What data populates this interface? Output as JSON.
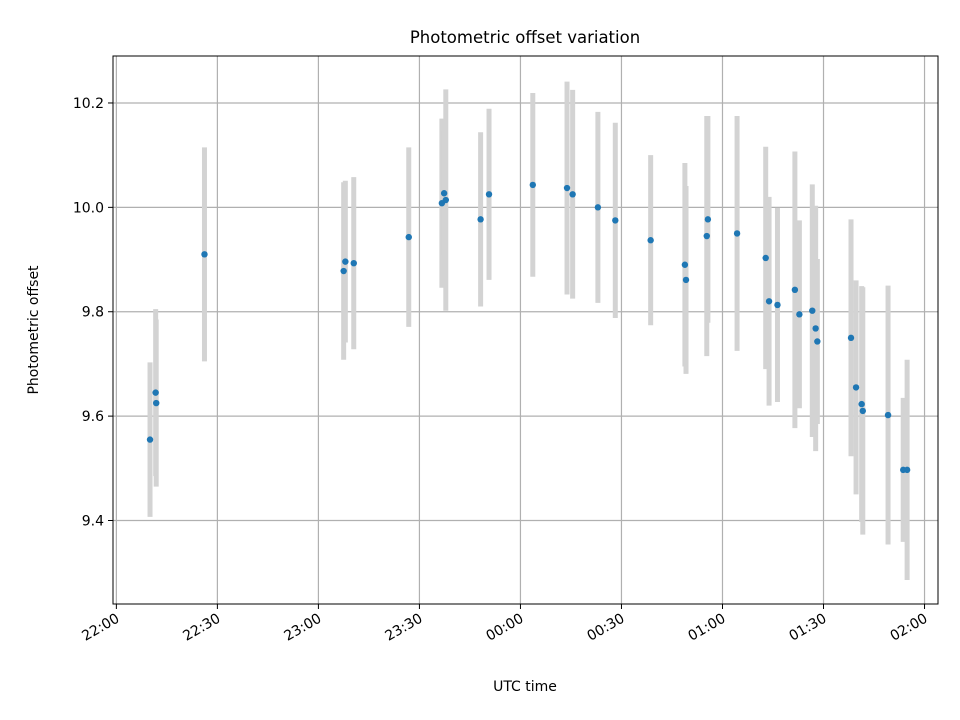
{
  "chart_data": {
    "type": "scatter",
    "title": "Photometric offset variation",
    "xlabel": "UTC time",
    "ylabel": "Photometric offset",
    "x_unit": "HH:MM",
    "xlim": [
      "21:59",
      "02:04"
    ],
    "ylim": [
      9.24,
      10.29
    ],
    "xticks": [
      "22:00",
      "22:30",
      "23:00",
      "23:30",
      "00:00",
      "00:30",
      "01:00",
      "01:30",
      "02:00"
    ],
    "yticks": [
      "9.4",
      "9.6",
      "9.8",
      "10.0",
      "10.2"
    ],
    "grid": true,
    "legend": "none",
    "colors": {
      "points": "#1f77b4",
      "errorbars": "#d3d3d3",
      "grid": "#b0b0b0"
    },
    "series": [
      {
        "points": [
          {
            "x": "22:10:00",
            "y": 9.555,
            "err": 0.148
          },
          {
            "x": "22:11:40",
            "y": 9.645,
            "err": 0.16
          },
          {
            "x": "22:11:50",
            "y": 9.625,
            "err": 0.16
          },
          {
            "x": "22:26:10",
            "y": 9.91,
            "err": 0.205
          },
          {
            "x": "23:07:30",
            "y": 9.878,
            "err": 0.17
          },
          {
            "x": "23:08:00",
            "y": 9.896,
            "err": 0.155
          },
          {
            "x": "23:10:30",
            "y": 9.893,
            "err": 0.165
          },
          {
            "x": "23:26:50",
            "y": 9.943,
            "err": 0.172
          },
          {
            "x": "23:36:40",
            "y": 10.008,
            "err": 0.162
          },
          {
            "x": "23:37:20",
            "y": 10.027,
            "err": 0.12
          },
          {
            "x": "23:37:50",
            "y": 10.014,
            "err": 0.212
          },
          {
            "x": "23:48:10",
            "y": 9.977,
            "err": 0.167
          },
          {
            "x": "23:50:40",
            "y": 10.025,
            "err": 0.164
          },
          {
            "x": "00:03:40",
            "y": 10.043,
            "err": 0.176
          },
          {
            "x": "00:13:50",
            "y": 10.037,
            "err": 0.204
          },
          {
            "x": "00:15:30",
            "y": 10.025,
            "err": 0.2
          },
          {
            "x": "00:23:00",
            "y": 10.0,
            "err": 0.183
          },
          {
            "x": "00:28:10",
            "y": 9.975,
            "err": 0.187
          },
          {
            "x": "00:38:40",
            "y": 9.937,
            "err": 0.163
          },
          {
            "x": "00:48:50",
            "y": 9.89,
            "err": 0.195
          },
          {
            "x": "00:49:10",
            "y": 9.861,
            "err": 0.18
          },
          {
            "x": "00:55:20",
            "y": 9.945,
            "err": 0.23
          },
          {
            "x": "00:55:40",
            "y": 9.977,
            "err": 0.198
          },
          {
            "x": "01:04:20",
            "y": 9.95,
            "err": 0.225
          },
          {
            "x": "01:12:50",
            "y": 9.903,
            "err": 0.213
          },
          {
            "x": "01:13:50",
            "y": 9.82,
            "err": 0.2
          },
          {
            "x": "01:16:20",
            "y": 9.813,
            "err": 0.186
          },
          {
            "x": "01:21:30",
            "y": 9.842,
            "err": 0.265
          },
          {
            "x": "01:22:50",
            "y": 9.795,
            "err": 0.18
          },
          {
            "x": "01:26:40",
            "y": 9.802,
            "err": 0.242
          },
          {
            "x": "01:27:40",
            "y": 9.768,
            "err": 0.235
          },
          {
            "x": "01:28:10",
            "y": 9.743,
            "err": 0.158
          },
          {
            "x": "01:38:10",
            "y": 9.75,
            "err": 0.227
          },
          {
            "x": "01:39:40",
            "y": 9.655,
            "err": 0.205
          },
          {
            "x": "01:41:20",
            "y": 9.623,
            "err": 0.226
          },
          {
            "x": "01:41:40",
            "y": 9.61,
            "err": 0.237
          },
          {
            "x": "01:49:10",
            "y": 9.602,
            "err": 0.248
          },
          {
            "x": "01:53:40",
            "y": 9.497,
            "err": 0.138
          },
          {
            "x": "01:54:50",
            "y": 9.497,
            "err": 0.211
          }
        ]
      }
    ]
  }
}
